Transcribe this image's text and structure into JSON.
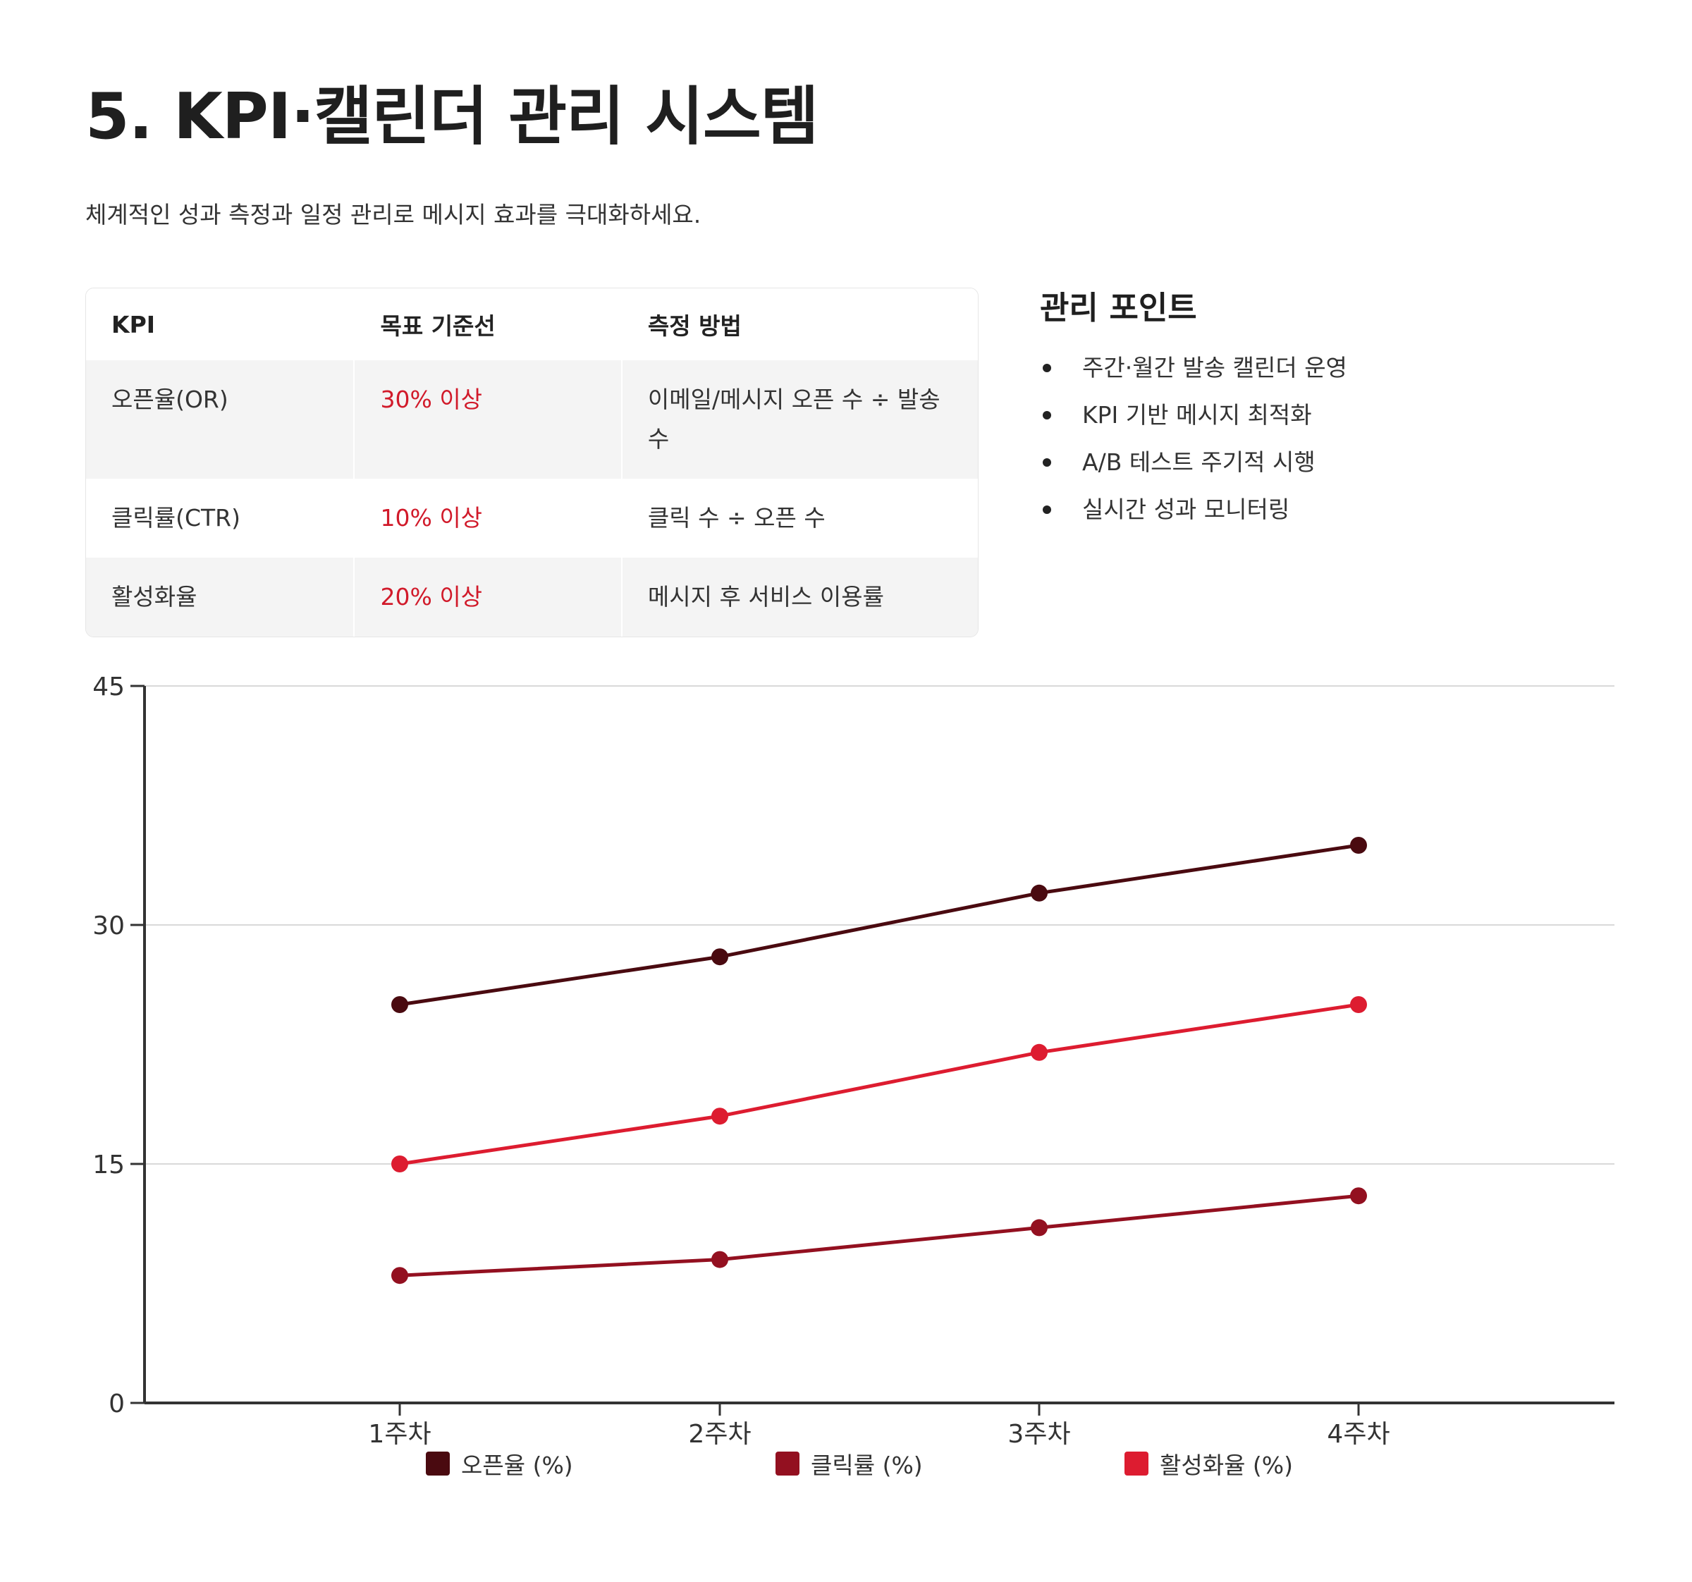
{
  "page": {
    "title": "5. KPI·캘린더 관리 시스템",
    "subtitle": "체계적인 성과 측정과 일정 관리로 메시지 효과를 극대화하세요."
  },
  "table": {
    "headers": [
      "KPI",
      "목표 기준선",
      "측정 방법"
    ],
    "rows": [
      {
        "kpi": "오픈율(OR)",
        "target": "30% 이상",
        "method": "이메일/메시지 오픈 수 ÷ 발송 수"
      },
      {
        "kpi": "클릭률(CTR)",
        "target": "10% 이상",
        "method": "클릭 수 ÷ 오픈 수"
      },
      {
        "kpi": "활성화율",
        "target": "20% 이상",
        "method": "메시지 후 서비스 이용률"
      }
    ]
  },
  "points": {
    "title": "관리 포인트",
    "items": [
      "주간·월간 발송 캘린더 운영",
      "KPI 기반 메시지 최적화",
      "A/B 테스트 주기적 시행",
      "실시간 성과 모니터링"
    ]
  },
  "colors": {
    "accent": "#d11a2a",
    "series1": "#4a0a10",
    "series2": "#931020",
    "series3": "#dd1c30",
    "grid": "#d9d9d9",
    "axis": "#333333"
  },
  "chart_data": {
    "type": "line",
    "categories": [
      "1주차",
      "2주차",
      "3주차",
      "4주차"
    ],
    "series": [
      {
        "name": "오픈율 (%)",
        "values": [
          25,
          28,
          32,
          35
        ]
      },
      {
        "name": "클릭률 (%)",
        "values": [
          8,
          9,
          11,
          13
        ]
      },
      {
        "name": "활성화율 (%)",
        "values": [
          15,
          18,
          22,
          25
        ]
      }
    ],
    "ylim": [
      0,
      45
    ],
    "yticks": [
      0,
      15,
      30,
      45
    ],
    "grid": true,
    "legend": "bottom"
  }
}
